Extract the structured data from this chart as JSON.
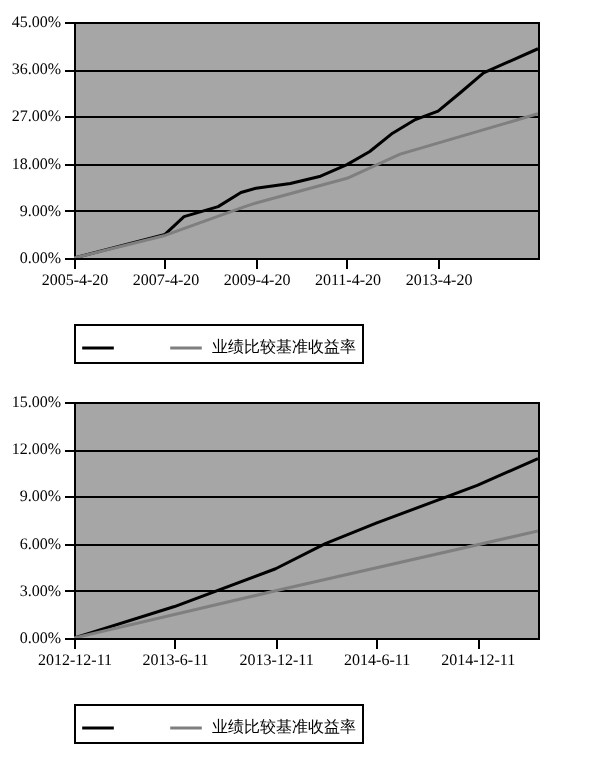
{
  "chart_data": [
    {
      "type": "line",
      "xlim": [
        "2005-04-20",
        "2015-07-01"
      ],
      "xticks": [
        {
          "value": "2005-04-20",
          "label": "2005-4-20"
        },
        {
          "value": "2007-04-20",
          "label": "2007-4-20"
        },
        {
          "value": "2009-04-20",
          "label": "2009-4-20"
        },
        {
          "value": "2011-04-20",
          "label": "2011-4-20"
        },
        {
          "value": "2013-04-20",
          "label": "2013-4-20"
        }
      ],
      "ylim": [
        0,
        45
      ],
      "yticks": [
        {
          "value": 0,
          "label": "0.00%"
        },
        {
          "value": 9,
          "label": "9.00%"
        },
        {
          "value": 18,
          "label": "18.00%"
        },
        {
          "value": 27,
          "label": "27.00%"
        },
        {
          "value": 36,
          "label": "36.00%"
        },
        {
          "value": 45,
          "label": "45.00%"
        }
      ],
      "grid": "y",
      "legend": "bottom",
      "marker": "none",
      "line_style": "solid",
      "series": [
        {
          "color": "#000000",
          "x": [
            "2005-04-20",
            "2007-04-20",
            "2007-09-20",
            "2008-06-20",
            "2008-12-20",
            "2009-04-20",
            "2010-01-20",
            "2010-09-20",
            "2011-04-20",
            "2011-10-20",
            "2012-04-20",
            "2012-10-20",
            "2013-04-20",
            "2013-10-20",
            "2014-04-20",
            "2015-07-01"
          ],
          "values": [
            0,
            4.5,
            7.9,
            9.8,
            12.5,
            13.3,
            14.2,
            15.6,
            17.8,
            20.3,
            23.8,
            26.4,
            28,
            31.6,
            35.3,
            39.9
          ]
        },
        {
          "name": "业绩比较基准收益率",
          "color": "#7f7f7f",
          "x": [
            "2005-04-20",
            "2007-04-20",
            "2009-01-20",
            "2009-04-20",
            "2011-04-20",
            "2012-06-20",
            "2015-07-01"
          ],
          "values": [
            0,
            4.3,
            9.8,
            10.5,
            15.2,
            19.8,
            27.5
          ]
        }
      ]
    },
    {
      "type": "line",
      "xlim": [
        "2012-12-11",
        "2015-03-31"
      ],
      "xticks": [
        {
          "value": "2012-12-11",
          "label": "2012-12-11"
        },
        {
          "value": "2013-06-11",
          "label": "2013-6-11"
        },
        {
          "value": "2013-12-11",
          "label": "2013-12-11"
        },
        {
          "value": "2014-06-11",
          "label": "2014-6-11"
        },
        {
          "value": "2014-12-11",
          "label": "2014-12-11"
        }
      ],
      "ylim": [
        0,
        15
      ],
      "yticks": [
        {
          "value": 0,
          "label": "0.00%"
        },
        {
          "value": 3,
          "label": "3.00%"
        },
        {
          "value": 6,
          "label": "6.00%"
        },
        {
          "value": 9,
          "label": "9.00%"
        },
        {
          "value": 12,
          "label": "12.00%"
        },
        {
          "value": 15,
          "label": "15.00%"
        }
      ],
      "grid": "y",
      "legend": "bottom",
      "marker": "none",
      "line_style": "solid",
      "series": [
        {
          "color": "#000000",
          "x": [
            "2012-12-11",
            "2013-06-11",
            "2013-12-11",
            "2014-03-11",
            "2014-06-11",
            "2014-12-11",
            "2015-03-31"
          ],
          "values": [
            0,
            2.0,
            4.4,
            6.0,
            7.3,
            9.7,
            11.4
          ]
        },
        {
          "name": "业绩比较基准收益率",
          "color": "#7f7f7f",
          "x": [
            "2012-12-11",
            "2013-12-11",
            "2015-03-31"
          ],
          "values": [
            0,
            3.0,
            6.8
          ]
        }
      ]
    }
  ]
}
